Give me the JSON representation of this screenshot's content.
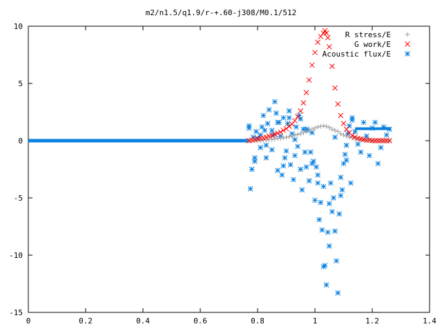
{
  "chart_data": {
    "type": "scatter",
    "title": "m2/n1.5/q1.9/r-+.60-j308/M0.1/512",
    "xlabel": "",
    "ylabel": "",
    "xlim": [
      0,
      1.4
    ],
    "ylim": [
      -15,
      10
    ],
    "xticks": [
      0,
      0.2,
      0.4,
      0.6,
      0.8,
      1,
      1.2,
      1.4
    ],
    "xtick_labels": [
      "0",
      "0.2",
      "0.4",
      "0.6",
      "0.8",
      "1",
      "1.2",
      "1.4"
    ],
    "yticks": [
      -15,
      -10,
      -5,
      0,
      5,
      10
    ],
    "ytick_labels": [
      "-15",
      "-10",
      "-5",
      "0",
      "5",
      "10"
    ],
    "grid": false,
    "legend_position": "top-right",
    "series": [
      {
        "name": "R stress/E",
        "marker": "plus",
        "color": "#a0a0a0",
        "x": [
          0.77,
          0.78,
          0.79,
          0.8,
          0.81,
          0.82,
          0.83,
          0.84,
          0.85,
          0.86,
          0.87,
          0.88,
          0.89,
          0.9,
          0.91,
          0.92,
          0.93,
          0.94,
          0.95,
          0.96,
          0.97,
          0.98,
          0.99,
          1.0,
          1.01,
          1.02,
          1.03,
          1.04,
          1.05,
          1.06,
          1.07,
          1.08,
          1.09,
          1.1,
          1.11,
          1.12,
          1.13,
          1.14,
          1.15,
          1.16,
          1.17,
          1.18,
          1.19,
          1.2,
          1.21,
          1.22,
          1.23,
          1.24,
          1.25,
          1.26
        ],
        "y": [
          0,
          0,
          0,
          0,
          0,
          0.05,
          0.05,
          0.1,
          0.1,
          0.15,
          0.2,
          0.2,
          0.25,
          0.3,
          0.35,
          0.4,
          0.5,
          0.55,
          0.6,
          0.7,
          0.8,
          0.9,
          1.0,
          1.1,
          1.2,
          1.25,
          1.3,
          1.25,
          1.15,
          1.0,
          0.9,
          0.8,
          0.6,
          0.5,
          0.4,
          0.3,
          0.25,
          0.2,
          0.15,
          0.1,
          0.1,
          0.05,
          0.05,
          0,
          0,
          0,
          0,
          0,
          0,
          0
        ]
      },
      {
        "name": "G work/E",
        "marker": "cross",
        "color": "#ff0000",
        "x": [
          0.77,
          0.78,
          0.79,
          0.8,
          0.81,
          0.82,
          0.83,
          0.84,
          0.85,
          0.86,
          0.87,
          0.88,
          0.89,
          0.9,
          0.91,
          0.92,
          0.93,
          0.94,
          0.95,
          0.96,
          0.97,
          0.98,
          0.99,
          1.0,
          1.01,
          1.02,
          1.03,
          1.035,
          1.04,
          1.045,
          1.05,
          1.06,
          1.07,
          1.08,
          1.09,
          1.1,
          1.11,
          1.12,
          1.13,
          1.14,
          1.15,
          1.16,
          1.17,
          1.18,
          1.19,
          1.2,
          1.21,
          1.22,
          1.23,
          1.24,
          1.25,
          1.26
        ],
        "y": [
          0,
          0.05,
          0.1,
          0.15,
          0.2,
          0.25,
          0.3,
          0.4,
          0.45,
          0.55,
          0.65,
          0.75,
          0.9,
          1.05,
          1.25,
          1.45,
          1.75,
          2.1,
          2.6,
          3.3,
          4.2,
          5.3,
          6.6,
          7.7,
          8.6,
          9.1,
          9.4,
          9.6,
          9.4,
          9.0,
          8.2,
          6.5,
          4.6,
          3.2,
          2.2,
          1.5,
          1.0,
          0.7,
          0.45,
          0.3,
          0.2,
          0.15,
          0.1,
          0.05,
          0.05,
          0,
          0,
          0,
          0,
          0,
          0,
          0
        ]
      },
      {
        "name": "Acoustic flux/E",
        "marker": "star",
        "color": "#0a80e0",
        "x": [
          0.77,
          0.775,
          0.78,
          0.785,
          0.79,
          0.795,
          0.8,
          0.81,
          0.815,
          0.82,
          0.825,
          0.83,
          0.835,
          0.84,
          0.85,
          0.855,
          0.86,
          0.865,
          0.87,
          0.875,
          0.88,
          0.885,
          0.89,
          0.895,
          0.9,
          0.905,
          0.91,
          0.915,
          0.92,
          0.925,
          0.93,
          0.935,
          0.94,
          0.945,
          0.95,
          0.955,
          0.96,
          0.965,
          0.97,
          0.975,
          0.98,
          0.985,
          0.99,
          0.995,
          1.0,
          1.005,
          1.01,
          1.015,
          1.02,
          1.025,
          1.03,
          1.035,
          1.04,
          1.045,
          1.05,
          1.055,
          1.06,
          1.065,
          1.07,
          1.075,
          1.08,
          1.085,
          1.09,
          1.095,
          1.1,
          1.105,
          1.11,
          1.115,
          1.12,
          1.125,
          1.13,
          1.14,
          1.15,
          1.16,
          1.17,
          1.18,
          1.19,
          1.2,
          1.21,
          1.22,
          1.23,
          1.24,
          1.25,
          1.26,
          0.77,
          0.79,
          0.81,
          0.83,
          0.85,
          0.87,
          0.89,
          0.91,
          0.93,
          0.95,
          0.97,
          0.99,
          1.01,
          1.03,
          1.05,
          1.07,
          1.09,
          1.11,
          1.13
        ],
        "y": [
          1.1,
          -4.2,
          -2.5,
          0.3,
          -1.5,
          0.8,
          0.2,
          -0.6,
          1.2,
          2.2,
          0.9,
          -0.4,
          1.5,
          2.7,
          -0.8,
          0.5,
          3.4,
          2.4,
          -2.6,
          1.6,
          0.4,
          -3.0,
          2.0,
          -1.5,
          -0.9,
          1.5,
          2.0,
          -2.1,
          0.6,
          -3.4,
          -1.3,
          1.2,
          -0.5,
          2.2,
          -2.5,
          -4.3,
          1.0,
          -1.0,
          -2.3,
          0.9,
          -3.5,
          -1.0,
          0.7,
          -1.8,
          -5.2,
          -2.3,
          -3.7,
          -6.9,
          -5.4,
          -7.8,
          -11.0,
          -10.9,
          -12.6,
          -8.0,
          -9.2,
          -3.7,
          -6.2,
          -5.0,
          -7.9,
          -10.5,
          -13.3,
          -6.4,
          -4.8,
          -4.3,
          -2.0,
          -1.2,
          -0.4,
          0.6,
          1.3,
          -3.7,
          1.8,
          0.8,
          -0.3,
          -1.0,
          1.6,
          0.4,
          -1.3,
          1.1,
          1.6,
          -2.0,
          -0.6,
          1.2,
          0.5,
          1.0,
          1.3,
          -1.8,
          0.5,
          -1.5,
          0.9,
          1.6,
          -2.2,
          2.6,
          0.1,
          1.9,
          1.0,
          -2.0,
          -3.0,
          -4.0,
          -5.5,
          0.3,
          -3.2,
          -1.7,
          2.0
        ]
      }
    ]
  }
}
